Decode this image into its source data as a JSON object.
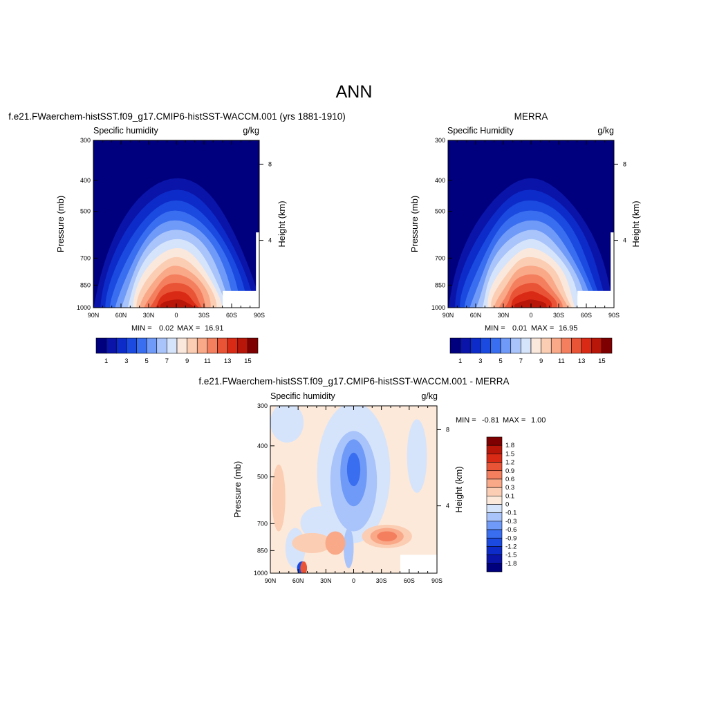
{
  "figure": {
    "title": "ANN",
    "colors": {
      "abs_palette": [
        "#00007f",
        "#0a14a8",
        "#0d2bc9",
        "#1a4ae0",
        "#3a6ef0",
        "#6f9af7",
        "#a9c4fa",
        "#d6e4fb",
        "#fbe8dc",
        "#fbcdb3",
        "#f9a888",
        "#f47f5f",
        "#ea5436",
        "#d92a16",
        "#b71609",
        "#7f0000"
      ],
      "diff_palette": [
        "#00007f",
        "#0a14a8",
        "#0d2bc9",
        "#1a4ae0",
        "#3a6ef0",
        "#6f9af7",
        "#a9c4fa",
        "#d6e4fb",
        "#fde9d9",
        "#fbcdb3",
        "#f9a888",
        "#f47f5f",
        "#ea5436",
        "#d92a16",
        "#b71609",
        "#7f0000"
      ]
    }
  },
  "chart_data": [
    {
      "type": "heatmap",
      "title": "f.e21.FWaerchem-histSST.f09_g17.CMIP6-histSST-WACCM.001 (yrs 1881-1910)",
      "variable_label": "Specific humidity",
      "units": "g/kg",
      "ylabel": "Pressure (mb)",
      "ylabel_right": "Height (km)",
      "x_ticks": [
        "90N",
        "60N",
        "30N",
        "0",
        "30S",
        "60S",
        "90S"
      ],
      "y_ticks": [
        "300",
        "400",
        "500",
        "700",
        "850",
        "1000"
      ],
      "y_ticks_right": [
        "8",
        "4"
      ],
      "stats": {
        "min_label": "MIN =",
        "min": "0.02",
        "max_label": "MAX =",
        "max": "16.91"
      },
      "peak": {
        "lat": 0,
        "pressure": 1000,
        "value": 16.91
      },
      "colorbar_levels": [
        "1",
        "3",
        "5",
        "7",
        "9",
        "11",
        "13",
        "15"
      ]
    },
    {
      "type": "heatmap",
      "title": "MERRA",
      "variable_label": "Specific Humidity",
      "units": "g/kg",
      "ylabel": "Pressure (mb)",
      "ylabel_right": "Height (km)",
      "x_ticks": [
        "90N",
        "60N",
        "30N",
        "0",
        "30S",
        "60S",
        "90S"
      ],
      "y_ticks": [
        "300",
        "400",
        "500",
        "700",
        "850",
        "1000"
      ],
      "y_ticks_right": [
        "8",
        "4"
      ],
      "stats": {
        "min_label": "MIN =",
        "min": "0.01",
        "max_label": "MAX =",
        "max": "16.95"
      },
      "peak": {
        "lat": 0,
        "pressure": 1000,
        "value": 16.95
      },
      "colorbar_levels": [
        "1",
        "3",
        "5",
        "7",
        "9",
        "11",
        "13",
        "15"
      ]
    },
    {
      "type": "heatmap",
      "title": "f.e21.FWaerchem-histSST.f09_g17.CMIP6-histSST-WACCM.001 - MERRA",
      "variable_label": "Specific humidity",
      "units": "g/kg",
      "ylabel": "Pressure (mb)",
      "ylabel_right": "Height (km)",
      "x_ticks": [
        "90N",
        "60N",
        "30N",
        "0",
        "30S",
        "60S",
        "90S"
      ],
      "y_ticks": [
        "300",
        "400",
        "500",
        "700",
        "850",
        "1000"
      ],
      "y_ticks_right": [
        "8",
        "4"
      ],
      "stats": {
        "min_label": "MIN =",
        "min": "-0.81",
        "max_label": "MAX =",
        "max": "1.00"
      },
      "colorbar_levels": [
        "1.8",
        "1.5",
        "1.2",
        "0.9",
        "0.6",
        "0.3",
        "0.1",
        "0",
        "-0.1",
        "-0.3",
        "-0.6",
        "-0.9",
        "-1.2",
        "-1.5",
        "-1.8"
      ]
    }
  ]
}
